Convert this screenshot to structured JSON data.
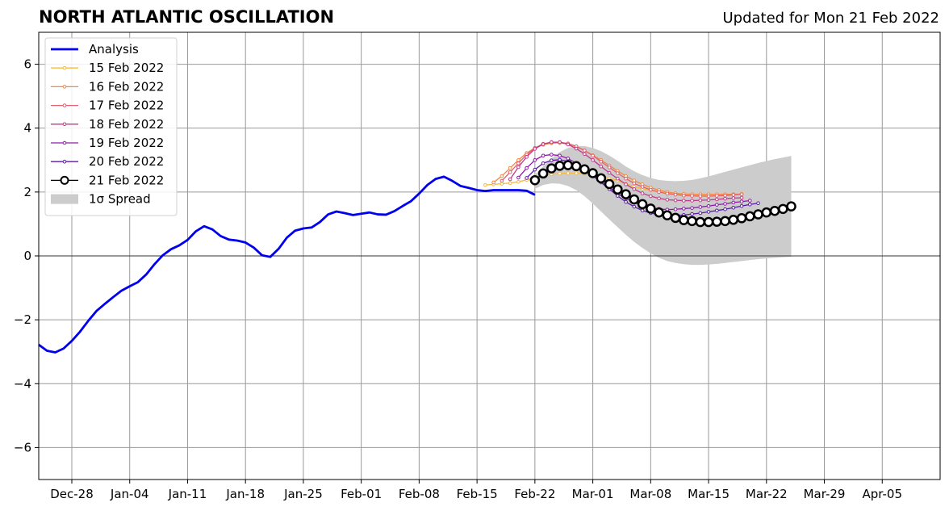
{
  "header": {
    "title": "NORTH ATLANTIC OSCILLATION",
    "updated": "Updated for Mon 21 Feb 2022"
  },
  "chart_data": {
    "type": "line",
    "title": "NORTH ATLANTIC OSCILLATION",
    "subtitle": "Updated for Mon 21 Feb 2022",
    "xlabel": "",
    "ylabel": "",
    "xlim": [
      "2021-12-24",
      "2022-04-12"
    ],
    "ylim": [
      -7,
      7
    ],
    "grid": true,
    "legend_position": "top-left",
    "x_ticks": [
      {
        "date": "2021-12-28",
        "label": "Dec-28"
      },
      {
        "date": "2022-01-04",
        "label": "Jan-04"
      },
      {
        "date": "2022-01-11",
        "label": "Jan-11"
      },
      {
        "date": "2022-01-18",
        "label": "Jan-18"
      },
      {
        "date": "2022-01-25",
        "label": "Jan-25"
      },
      {
        "date": "2022-02-01",
        "label": "Feb-01"
      },
      {
        "date": "2022-02-08",
        "label": "Feb-08"
      },
      {
        "date": "2022-02-15",
        "label": "Feb-15"
      },
      {
        "date": "2022-02-22",
        "label": "Feb-22"
      },
      {
        "date": "2022-03-01",
        "label": "Mar-01"
      },
      {
        "date": "2022-03-08",
        "label": "Mar-08"
      },
      {
        "date": "2022-03-15",
        "label": "Mar-15"
      },
      {
        "date": "2022-03-22",
        "label": "Mar-22"
      },
      {
        "date": "2022-03-29",
        "label": "Mar-29"
      },
      {
        "date": "2022-04-05",
        "label": "Apr-05"
      }
    ],
    "y_ticks": [
      {
        "value": -6,
        "label": "−6"
      },
      {
        "value": -4,
        "label": "−4"
      },
      {
        "value": -2,
        "label": "−2"
      },
      {
        "value": 0,
        "label": "0"
      },
      {
        "value": 2,
        "label": "2"
      },
      {
        "value": 4,
        "label": "4"
      },
      {
        "value": 6,
        "label": "6"
      }
    ],
    "analysis": {
      "name": "Analysis",
      "color": "#0000ee",
      "start": "2021-12-24",
      "values": [
        -2.78,
        -2.97,
        -3.02,
        -2.9,
        -2.66,
        -2.37,
        -2.03,
        -1.72,
        -1.5,
        -1.29,
        -1.09,
        -0.95,
        -0.82,
        -0.58,
        -0.26,
        0.02,
        0.21,
        0.33,
        0.5,
        0.77,
        0.93,
        0.83,
        0.62,
        0.51,
        0.48,
        0.42,
        0.26,
        0.02,
        -0.03,
        0.22,
        0.57,
        0.79,
        0.86,
        0.89,
        1.06,
        1.3,
        1.39,
        1.34,
        1.28,
        1.32,
        1.36,
        1.3,
        1.29,
        1.4,
        1.56,
        1.71,
        1.95,
        2.22,
        2.41,
        2.48,
        2.35,
        2.19,
        2.13,
        2.06,
        2.03,
        2.06,
        2.06,
        2.06,
        2.06,
        2.04,
        1.91
      ]
    },
    "forecasts": [
      {
        "name": "15 Feb 2022",
        "color": "#f5b942",
        "start": "2022-02-16",
        "values": [
          2.22,
          2.24,
          2.26,
          2.28,
          2.32,
          2.38,
          2.45,
          2.52,
          2.56,
          2.58,
          2.59,
          2.59,
          2.58,
          2.55,
          2.5,
          2.42,
          2.36,
          2.26,
          2.17,
          2.1,
          2.05,
          2.01,
          1.98,
          1.94,
          1.91,
          1.9,
          1.9,
          1.89,
          1.9,
          1.91,
          1.93,
          1.95
        ]
      },
      {
        "name": "16 Feb 2022",
        "color": "#ef8a47",
        "start": "2022-02-17",
        "values": [
          2.3,
          2.5,
          2.75,
          3.0,
          3.22,
          3.38,
          3.48,
          3.53,
          3.54,
          3.5,
          3.42,
          3.3,
          3.15,
          3.0,
          2.83,
          2.66,
          2.5,
          2.36,
          2.24,
          2.14,
          2.06,
          2.0,
          1.96,
          1.94,
          1.93,
          1.93,
          1.93,
          1.93,
          1.93,
          1.93,
          1.93
        ]
      },
      {
        "name": "17 Feb 2022",
        "color": "#e0616f",
        "start": "2022-02-18",
        "values": [
          2.35,
          2.62,
          2.9,
          3.17,
          3.38,
          3.51,
          3.56,
          3.56,
          3.52,
          3.43,
          3.3,
          3.14,
          2.95,
          2.77,
          2.59,
          2.42,
          2.27,
          2.16,
          2.07,
          2.0,
          1.95,
          1.92,
          1.89,
          1.88,
          1.87,
          1.87,
          1.88,
          1.89,
          1.91,
          1.93
        ]
      },
      {
        "name": "18 Feb 2022",
        "color": "#c03a8a",
        "start": "2022-02-19",
        "values": [
          2.4,
          2.78,
          3.1,
          3.35,
          3.5,
          3.56,
          3.56,
          3.49,
          3.36,
          3.19,
          3.0,
          2.8,
          2.6,
          2.42,
          2.24,
          2.09,
          1.96,
          1.87,
          1.8,
          1.76,
          1.74,
          1.73,
          1.73,
          1.74,
          1.75,
          1.77,
          1.79,
          1.81,
          1.82
        ]
      },
      {
        "name": "19 Feb 2022",
        "color": "#8f1aa8",
        "start": "2022-02-20",
        "values": [
          2.45,
          2.75,
          3.0,
          3.14,
          3.17,
          3.14,
          3.05,
          2.9,
          2.72,
          2.53,
          2.33,
          2.14,
          1.95,
          1.8,
          1.67,
          1.57,
          1.5,
          1.47,
          1.45,
          1.46,
          1.48,
          1.5,
          1.53,
          1.56,
          1.6,
          1.63,
          1.67,
          1.7,
          1.73
        ]
      },
      {
        "name": "20 Feb 2022",
        "color": "#5a1ba6",
        "start": "2022-02-21",
        "values": [
          2.44,
          2.7,
          2.9,
          2.99,
          3.01,
          2.96,
          2.86,
          2.7,
          2.51,
          2.3,
          2.09,
          1.88,
          1.69,
          1.54,
          1.42,
          1.34,
          1.29,
          1.27,
          1.27,
          1.28,
          1.31,
          1.34,
          1.38,
          1.42,
          1.46,
          1.51,
          1.56,
          1.61,
          1.65
        ]
      },
      {
        "name": "21 Feb 2022",
        "color": "#000000",
        "start": "2022-02-22",
        "values": [
          2.37,
          2.58,
          2.74,
          2.82,
          2.84,
          2.81,
          2.71,
          2.59,
          2.43,
          2.25,
          2.08,
          1.93,
          1.77,
          1.62,
          1.48,
          1.36,
          1.27,
          1.19,
          1.12,
          1.09,
          1.06,
          1.06,
          1.07,
          1.09,
          1.13,
          1.18,
          1.24,
          1.3,
          1.36,
          1.41,
          1.47,
          1.55
        ]
      }
    ],
    "spread": {
      "name": "1σ Spread",
      "color": "#cccccc",
      "start": "2022-02-22",
      "upper": [
        2.55,
        2.8,
        3.05,
        3.25,
        3.38,
        3.44,
        3.44,
        3.38,
        3.28,
        3.14,
        2.98,
        2.8,
        2.65,
        2.53,
        2.44,
        2.38,
        2.35,
        2.34,
        2.35,
        2.38,
        2.43,
        2.49,
        2.56,
        2.63,
        2.7,
        2.77,
        2.84,
        2.91,
        2.97,
        3.03,
        3.08,
        3.13
      ],
      "lower": [
        2.1,
        2.22,
        2.27,
        2.26,
        2.19,
        2.06,
        1.87,
        1.64,
        1.39,
        1.14,
        0.9,
        0.66,
        0.44,
        0.25,
        0.08,
        -0.06,
        -0.16,
        -0.22,
        -0.26,
        -0.28,
        -0.28,
        -0.27,
        -0.25,
        -0.22,
        -0.19,
        -0.16,
        -0.13,
        -0.1,
        -0.08,
        -0.06,
        -0.04,
        -0.03
      ]
    }
  }
}
